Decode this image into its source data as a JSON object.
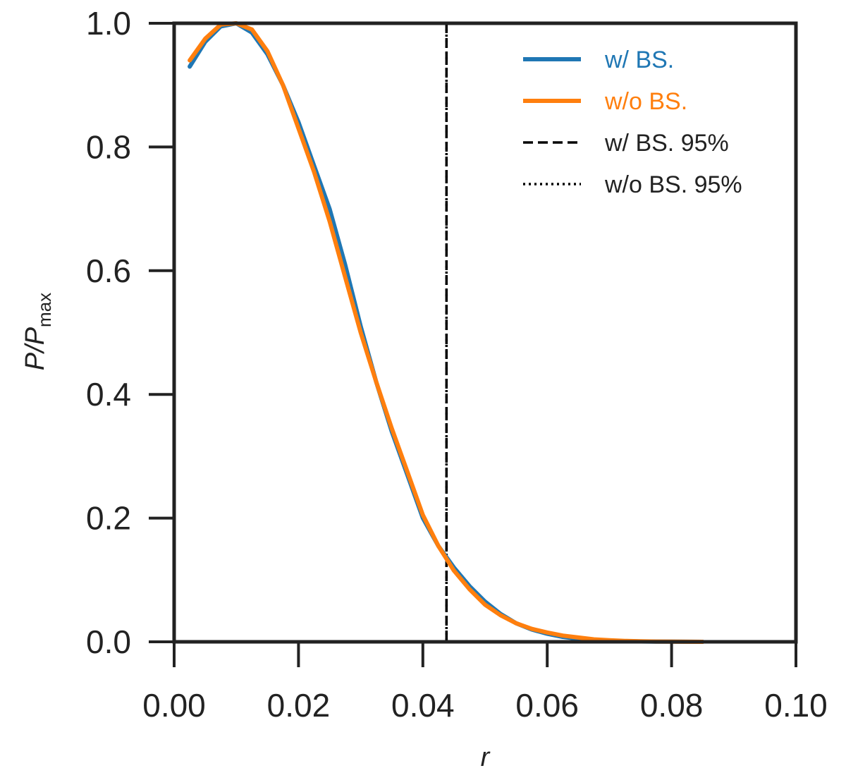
{
  "chart_data": {
    "type": "line",
    "title": "",
    "xlabel": "r",
    "ylabel": {
      "main": "P/P",
      "subscript": "max"
    },
    "xlim": [
      0.0,
      0.1
    ],
    "ylim": [
      0.0,
      1.0
    ],
    "xticks": [
      0.0,
      0.02,
      0.04,
      0.06,
      0.08,
      0.1
    ],
    "xtick_labels": [
      "0.00",
      "0.02",
      "0.04",
      "0.06",
      "0.08",
      "0.10"
    ],
    "yticks": [
      0.0,
      0.2,
      0.4,
      0.6,
      0.8,
      1.0
    ],
    "ytick_labels": [
      "0.0",
      "0.2",
      "0.4",
      "0.6",
      "0.8",
      "1.0"
    ],
    "grid": false,
    "legend_position": "top-right",
    "series": [
      {
        "name": "w/ BS.",
        "style": "solid",
        "color": "#1f77b4",
        "x": [
          0.0025,
          0.005,
          0.0075,
          0.01,
          0.0125,
          0.015,
          0.0175,
          0.02,
          0.0225,
          0.025,
          0.0275,
          0.03,
          0.0325,
          0.035,
          0.0375,
          0.04,
          0.0425,
          0.045,
          0.0475,
          0.05,
          0.0525,
          0.055,
          0.0575,
          0.06,
          0.0625,
          0.065,
          0.0675,
          0.07,
          0.0725,
          0.075,
          0.0775,
          0.08,
          0.0825,
          0.085
        ],
        "y": [
          0.93,
          0.97,
          0.995,
          1.0,
          0.985,
          0.95,
          0.9,
          0.84,
          0.77,
          0.7,
          0.61,
          0.51,
          0.42,
          0.34,
          0.27,
          0.2,
          0.155,
          0.12,
          0.09,
          0.065,
          0.045,
          0.03,
          0.02,
          0.013,
          0.008,
          0.005,
          0.003,
          0.002,
          0.001,
          0.0006,
          0.0003,
          0.0002,
          0.0001,
          0.0
        ]
      },
      {
        "name": "w/o BS.",
        "style": "solid",
        "color": "#ff7f0e",
        "x": [
          0.0025,
          0.005,
          0.0075,
          0.01,
          0.0125,
          0.015,
          0.0175,
          0.02,
          0.0225,
          0.025,
          0.0275,
          0.03,
          0.0325,
          0.035,
          0.0375,
          0.04,
          0.0425,
          0.045,
          0.0475,
          0.05,
          0.0525,
          0.055,
          0.0575,
          0.06,
          0.0625,
          0.065,
          0.0675,
          0.07,
          0.0725,
          0.075,
          0.0775,
          0.08,
          0.0825,
          0.085
        ],
        "y": [
          0.94,
          0.975,
          0.998,
          1.0,
          0.99,
          0.955,
          0.9,
          0.83,
          0.76,
          0.68,
          0.59,
          0.5,
          0.42,
          0.345,
          0.275,
          0.205,
          0.155,
          0.115,
          0.085,
          0.06,
          0.043,
          0.03,
          0.021,
          0.015,
          0.01,
          0.007,
          0.004,
          0.0025,
          0.0015,
          0.0008,
          0.0004,
          0.0002,
          0.0001,
          0.0
        ]
      }
    ],
    "vlines": [
      {
        "name": "w/ BS. 95%",
        "x": 0.0438,
        "style": "dashed",
        "color": "#000000"
      },
      {
        "name": "w/o BS. 95%",
        "x": 0.0438,
        "style": "dotted",
        "color": "#000000"
      }
    ]
  }
}
